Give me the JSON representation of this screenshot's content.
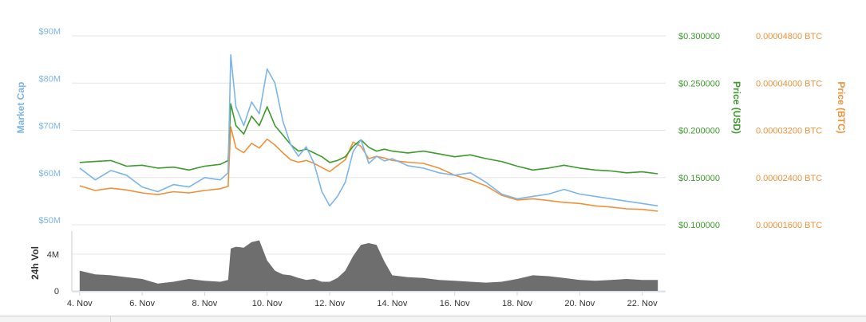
{
  "colors": {
    "market_cap": "#7cb5ec",
    "price_usd": "#3d9a2c",
    "price_btc": "#f0913a",
    "volume": "#6e6e6e",
    "grid": "#e6e6e6",
    "axis_text": "#333333"
  },
  "chart_data": [
    {
      "type": "line",
      "title": "",
      "x_range": [
        "2017-11-03T18:00",
        "2017-11-22T18:00"
      ],
      "x_tick_labels": [
        "4. Nov",
        "6. Nov",
        "8. Nov",
        "10. Nov",
        "12. Nov",
        "14. Nov",
        "16. Nov",
        "18. Nov",
        "20. Nov",
        "22. Nov"
      ],
      "x_tick_dates": [
        "2017-11-04",
        "2017-11-06",
        "2017-11-08",
        "2017-11-10",
        "2017-11-12",
        "2017-11-14",
        "2017-11-16",
        "2017-11-18",
        "2017-11-20",
        "2017-11-22"
      ],
      "grid": true,
      "legend": "none",
      "axes": {
        "market_cap": {
          "label": "Market Cap",
          "position": "left",
          "range": [
            50000000,
            90000000
          ],
          "tick_labels": [
            "$50M",
            "$60M",
            "$70M",
            "$80M",
            "$90M"
          ],
          "tick_values": [
            50000000,
            60000000,
            70000000,
            80000000,
            90000000
          ]
        },
        "price_usd": {
          "label": "Price (USD)",
          "position": "right",
          "range": [
            0.1,
            0.3
          ],
          "tick_labels": [
            "$0.100000",
            "$0.150000",
            "$0.200000",
            "$0.250000",
            "$0.300000"
          ],
          "tick_values": [
            0.1,
            0.15,
            0.2,
            0.25,
            0.3
          ]
        },
        "price_btc": {
          "label": "Price (BTC)",
          "position": "right",
          "range": [
            1.6e-05,
            4.8e-05
          ],
          "tick_labels": [
            "0.00001600 BTC",
            "0.00002400 BTC",
            "0.00003200 BTC",
            "0.00004000 BTC",
            "0.00004800 BTC"
          ],
          "tick_values": [
            1.6e-05,
            2.4e-05,
            3.2e-05,
            4e-05,
            4.8e-05
          ]
        }
      },
      "series": [
        {
          "axis": "market_cap",
          "x": [
            "2017-11-04T00:00",
            "2017-11-04T12:00",
            "2017-11-05T00:00",
            "2017-11-05T12:00",
            "2017-11-06T00:00",
            "2017-11-06T12:00",
            "2017-11-07T00:00",
            "2017-11-07T12:00",
            "2017-11-08T00:00",
            "2017-11-08T12:00",
            "2017-11-08T18:00",
            "2017-11-08T20:00",
            "2017-11-09T00:00",
            "2017-11-09T06:00",
            "2017-11-09T12:00",
            "2017-11-09T18:00",
            "2017-11-10T00:00",
            "2017-11-10T06:00",
            "2017-11-10T12:00",
            "2017-11-10T18:00",
            "2017-11-11T00:00",
            "2017-11-11T06:00",
            "2017-11-11T12:00",
            "2017-11-11T18:00",
            "2017-11-12T00:00",
            "2017-11-12T06:00",
            "2017-11-12T12:00",
            "2017-11-12T18:00",
            "2017-11-13T00:00",
            "2017-11-13T06:00",
            "2017-11-13T12:00",
            "2017-11-13T18:00",
            "2017-11-14T00:00",
            "2017-11-14T12:00",
            "2017-11-15T00:00",
            "2017-11-15T12:00",
            "2017-11-16T00:00",
            "2017-11-16T12:00",
            "2017-11-17T00:00",
            "2017-11-17T12:00",
            "2017-11-18T00:00",
            "2017-11-18T12:00",
            "2017-11-19T00:00",
            "2017-11-19T12:00",
            "2017-11-20T00:00",
            "2017-11-20T12:00",
            "2017-11-21T00:00",
            "2017-11-21T12:00",
            "2017-11-22T00:00",
            "2017-11-22T12:00"
          ],
          "values": [
            62000000,
            59500000,
            61500000,
            60500000,
            58000000,
            57000000,
            58500000,
            58000000,
            60000000,
            59500000,
            61000000,
            86000000,
            75000000,
            71000000,
            76000000,
            73500000,
            83000000,
            80000000,
            72000000,
            67000000,
            64500000,
            66500000,
            63000000,
            57000000,
            54000000,
            56000000,
            59000000,
            65500000,
            68000000,
            63000000,
            64500000,
            63500000,
            64000000,
            62500000,
            62000000,
            61000000,
            60500000,
            61000000,
            59000000,
            56500000,
            55500000,
            56000000,
            56500000,
            57500000,
            56500000,
            56000000,
            55500000,
            55000000,
            54500000,
            54000000
          ]
        },
        {
          "axis": "price_usd",
          "x": [
            "2017-11-04T00:00",
            "2017-11-04T12:00",
            "2017-11-05T00:00",
            "2017-11-05T12:00",
            "2017-11-06T00:00",
            "2017-11-06T12:00",
            "2017-11-07T00:00",
            "2017-11-07T12:00",
            "2017-11-08T00:00",
            "2017-11-08T12:00",
            "2017-11-08T18:00",
            "2017-11-08T20:00",
            "2017-11-09T00:00",
            "2017-11-09T06:00",
            "2017-11-09T12:00",
            "2017-11-09T18:00",
            "2017-11-10T00:00",
            "2017-11-10T06:00",
            "2017-11-10T12:00",
            "2017-11-10T18:00",
            "2017-11-11T00:00",
            "2017-11-11T06:00",
            "2017-11-11T12:00",
            "2017-11-11T18:00",
            "2017-11-12T00:00",
            "2017-11-12T06:00",
            "2017-11-12T12:00",
            "2017-11-12T18:00",
            "2017-11-13T00:00",
            "2017-11-13T06:00",
            "2017-11-13T12:00",
            "2017-11-13T18:00",
            "2017-11-14T00:00",
            "2017-11-14T12:00",
            "2017-11-15T00:00",
            "2017-11-15T12:00",
            "2017-11-16T00:00",
            "2017-11-16T12:00",
            "2017-11-17T00:00",
            "2017-11-17T12:00",
            "2017-11-18T00:00",
            "2017-11-18T12:00",
            "2017-11-19T00:00",
            "2017-11-19T12:00",
            "2017-11-20T00:00",
            "2017-11-20T12:00",
            "2017-11-21T00:00",
            "2017-11-21T12:00",
            "2017-11-22T00:00",
            "2017-11-22T12:00"
          ],
          "values": [
            0.166,
            0.167,
            0.168,
            0.162,
            0.163,
            0.16,
            0.161,
            0.158,
            0.162,
            0.164,
            0.168,
            0.228,
            0.205,
            0.196,
            0.215,
            0.205,
            0.225,
            0.205,
            0.195,
            0.185,
            0.178,
            0.18,
            0.176,
            0.172,
            0.166,
            0.168,
            0.172,
            0.183,
            0.19,
            0.182,
            0.178,
            0.18,
            0.178,
            0.176,
            0.178,
            0.175,
            0.172,
            0.174,
            0.17,
            0.167,
            0.162,
            0.158,
            0.16,
            0.163,
            0.16,
            0.158,
            0.157,
            0.155,
            0.156,
            0.154
          ]
        },
        {
          "axis": "price_btc",
          "x": [
            "2017-11-04T00:00",
            "2017-11-04T12:00",
            "2017-11-05T00:00",
            "2017-11-05T12:00",
            "2017-11-06T00:00",
            "2017-11-06T12:00",
            "2017-11-07T00:00",
            "2017-11-07T12:00",
            "2017-11-08T00:00",
            "2017-11-08T12:00",
            "2017-11-08T18:00",
            "2017-11-08T20:00",
            "2017-11-09T00:00",
            "2017-11-09T06:00",
            "2017-11-09T12:00",
            "2017-11-09T18:00",
            "2017-11-10T00:00",
            "2017-11-10T06:00",
            "2017-11-10T12:00",
            "2017-11-10T18:00",
            "2017-11-11T00:00",
            "2017-11-11T06:00",
            "2017-11-11T12:00",
            "2017-11-11T18:00",
            "2017-11-12T00:00",
            "2017-11-12T06:00",
            "2017-11-12T12:00",
            "2017-11-12T18:00",
            "2017-11-13T00:00",
            "2017-11-13T06:00",
            "2017-11-13T12:00",
            "2017-11-13T18:00",
            "2017-11-14T00:00",
            "2017-11-14T12:00",
            "2017-11-15T00:00",
            "2017-11-15T12:00",
            "2017-11-16T00:00",
            "2017-11-16T12:00",
            "2017-11-17T00:00",
            "2017-11-17T12:00",
            "2017-11-18T00:00",
            "2017-11-18T12:00",
            "2017-11-19T00:00",
            "2017-11-19T12:00",
            "2017-11-20T00:00",
            "2017-11-20T12:00",
            "2017-11-21T00:00",
            "2017-11-21T12:00",
            "2017-11-22T00:00",
            "2017-11-22T12:00"
          ],
          "values": [
            2.26e-05,
            2.18e-05,
            2.22e-05,
            2.19e-05,
            2.14e-05,
            2.11e-05,
            2.16e-05,
            2.14e-05,
            2.18e-05,
            2.21e-05,
            2.25e-05,
            3.26e-05,
            2.9e-05,
            2.82e-05,
            2.98e-05,
            2.9e-05,
            3.05e-05,
            2.95e-05,
            2.82e-05,
            2.7e-05,
            2.66e-05,
            2.69e-05,
            2.64e-05,
            2.57e-05,
            2.5e-05,
            2.6e-05,
            2.7e-05,
            3e-05,
            2.93e-05,
            2.72e-05,
            2.76e-05,
            2.73e-05,
            2.69e-05,
            2.66e-05,
            2.64e-05,
            2.56e-05,
            2.44e-05,
            2.36e-05,
            2.26e-05,
            2.1e-05,
            2.02e-05,
            2.04e-05,
            2.01e-05,
            1.98e-05,
            1.96e-05,
            1.92e-05,
            1.9e-05,
            1.87e-05,
            1.86e-05,
            1.83e-05
          ]
        }
      ]
    },
    {
      "type": "area",
      "title": "",
      "y_label": "24h Vol",
      "y_tick_labels": [
        "0",
        "4M"
      ],
      "y_tick_values": [
        0,
        4000000
      ],
      "y_range": [
        0,
        6500000
      ],
      "x_range": [
        "2017-11-03T18:00",
        "2017-11-22T18:00"
      ],
      "series": [
        {
          "name": "",
          "x": [
            "2017-11-04T00:00",
            "2017-11-04T12:00",
            "2017-11-05T00:00",
            "2017-11-05T12:00",
            "2017-11-06T00:00",
            "2017-11-06T12:00",
            "2017-11-07T00:00",
            "2017-11-07T12:00",
            "2017-11-08T00:00",
            "2017-11-08T12:00",
            "2017-11-08T18:00",
            "2017-11-08T20:00",
            "2017-11-09T00:00",
            "2017-11-09T06:00",
            "2017-11-09T12:00",
            "2017-11-09T18:00",
            "2017-11-10T00:00",
            "2017-11-10T06:00",
            "2017-11-10T12:00",
            "2017-11-10T18:00",
            "2017-11-11T00:00",
            "2017-11-11T06:00",
            "2017-11-11T12:00",
            "2017-11-11T18:00",
            "2017-11-12T00:00",
            "2017-11-12T06:00",
            "2017-11-12T12:00",
            "2017-11-12T18:00",
            "2017-11-13T00:00",
            "2017-11-13T06:00",
            "2017-11-13T12:00",
            "2017-11-13T18:00",
            "2017-11-14T00:00",
            "2017-11-14T12:00",
            "2017-11-15T00:00",
            "2017-11-15T12:00",
            "2017-11-16T00:00",
            "2017-11-16T12:00",
            "2017-11-17T00:00",
            "2017-11-17T12:00",
            "2017-11-18T00:00",
            "2017-11-18T12:00",
            "2017-11-19T00:00",
            "2017-11-19T12:00",
            "2017-11-20T00:00",
            "2017-11-20T12:00",
            "2017-11-21T00:00",
            "2017-11-21T12:00",
            "2017-11-22T00:00",
            "2017-11-22T12:00"
          ],
          "values": [
            2200000,
            1800000,
            1700000,
            1500000,
            1300000,
            800000,
            1000000,
            1300000,
            1100000,
            1000000,
            1200000,
            4600000,
            4800000,
            4700000,
            5300000,
            5500000,
            3300000,
            2200000,
            1800000,
            1700000,
            1400000,
            1200000,
            1300000,
            1000000,
            1000000,
            1400000,
            2200000,
            3800000,
            5000000,
            5200000,
            5000000,
            3200000,
            1700000,
            1500000,
            1400000,
            1200000,
            1100000,
            1000000,
            900000,
            1000000,
            1300000,
            1700000,
            1600000,
            1400000,
            1200000,
            1100000,
            1200000,
            1300000,
            1200000,
            1200000
          ]
        }
      ]
    }
  ]
}
